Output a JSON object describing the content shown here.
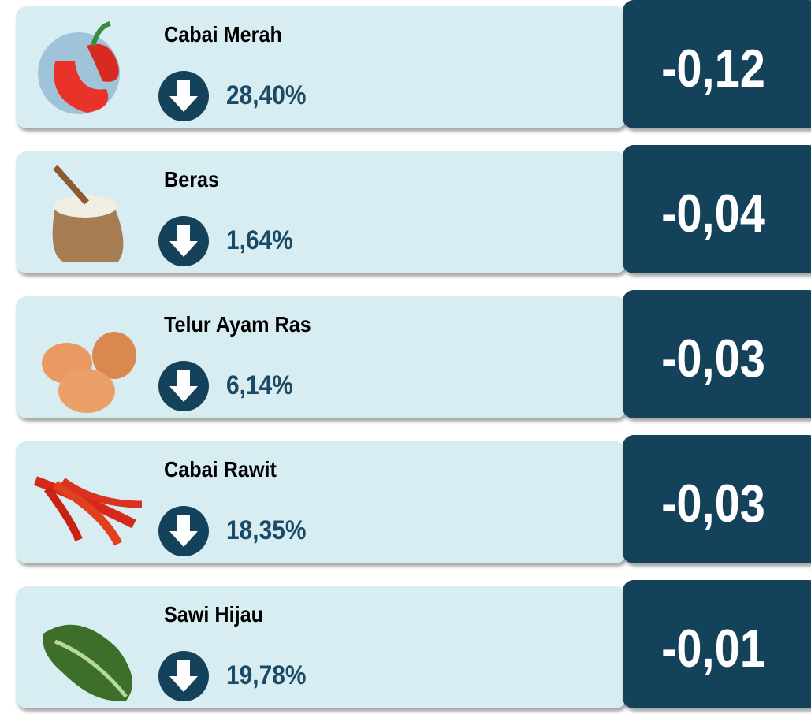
{
  "items": [
    {
      "name": "Cabai Merah",
      "change": "28,40%",
      "contribution": "-0,12"
    },
    {
      "name": "Beras",
      "change": "1,64%",
      "contribution": "-0,04"
    },
    {
      "name": "Telur Ayam Ras",
      "change": "6,14%",
      "contribution": "-0,03"
    },
    {
      "name": "Cabai Rawit",
      "change": "18,35%",
      "contribution": "-0,03"
    },
    {
      "name": "Sawi Hijau",
      "change": "19,78%",
      "contribution": "-0,01"
    }
  ]
}
